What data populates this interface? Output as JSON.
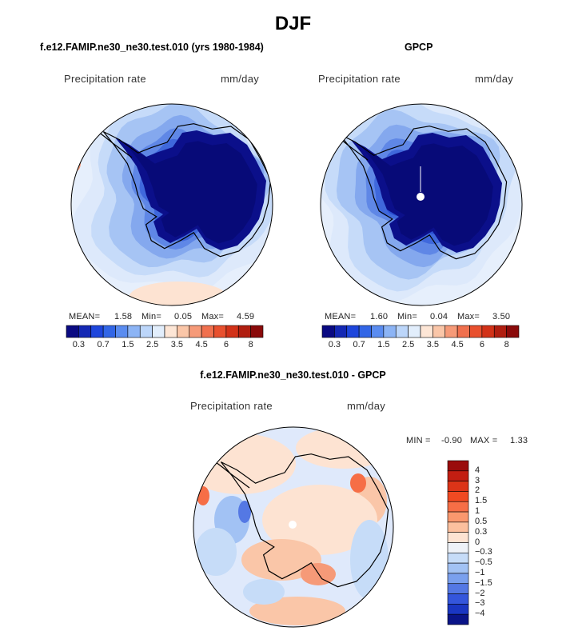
{
  "figure_title": "DJF",
  "panels": [
    {
      "title": "f.e12.FAMIP.ne30_ne30.test.010 (yrs 1980-1984)",
      "variable": "Precipitation rate",
      "units": "mm/day",
      "stats": {
        "mean_label": "MEAN=",
        "mean": "1.58",
        "min_label": "Min=",
        "min": "0.05",
        "max_label": "Max=",
        "max": "4.59"
      }
    },
    {
      "title": "GPCP",
      "variable": "Precipitation rate",
      "units": "mm/day",
      "stats": {
        "mean_label": "MEAN=",
        "mean": "1.60",
        "min_label": "Min=",
        "min": "0.04",
        "max_label": "Max=",
        "max": "3.50"
      }
    },
    {
      "title": "f.e12.FAMIP.ne30_ne30.test.010 - GPCP",
      "variable": "Precipitation rate",
      "units": "mm/day",
      "stats": {
        "min_label": "MIN =",
        "min": "-0.90",
        "max_label": "MAX =",
        "max": "1.33"
      }
    }
  ],
  "chart_data": [
    {
      "type": "heatmap",
      "projection": "south polar stereographic",
      "title": "f.e12.FAMIP.ne30_ne30.test.010 (yrs 1980-1984)",
      "variable": "Precipitation rate",
      "units": "mm/day",
      "mean": 1.58,
      "min": 0.05,
      "max": 4.59,
      "colorbar": {
        "levels": [
          "0.3",
          "0.7",
          "1.5",
          "2.5",
          "3.5",
          "4.5",
          "6",
          "8"
        ],
        "colors": [
          "#0a0a82",
          "#1428b4",
          "#1e46dc",
          "#3266e6",
          "#5a8cf0",
          "#8cb4f5",
          "#bcd6fa",
          "#e2eefc",
          "#fde6d6",
          "#fac6a8",
          "#f69a78",
          "#f0704e",
          "#e8502e",
          "#d23218",
          "#b01e10",
          "#8a0a0a"
        ]
      }
    },
    {
      "type": "heatmap",
      "projection": "south polar stereographic",
      "title": "GPCP",
      "variable": "Precipitation rate",
      "units": "mm/day",
      "mean": 1.6,
      "min": 0.04,
      "max": 3.5,
      "colorbar": {
        "levels": [
          "0.3",
          "0.7",
          "1.5",
          "2.5",
          "3.5",
          "4.5",
          "6",
          "8"
        ],
        "colors": [
          "#0a0a82",
          "#1428b4",
          "#1e46dc",
          "#3266e6",
          "#5a8cf0",
          "#8cb4f5",
          "#bcd6fa",
          "#e2eefc",
          "#fde6d6",
          "#fac6a8",
          "#f69a78",
          "#f0704e",
          "#e8502e",
          "#d23218",
          "#b01e10",
          "#8a0a0a"
        ]
      }
    },
    {
      "type": "heatmap",
      "projection": "south polar stereographic",
      "title": "f.e12.FAMIP.ne30_ne30.test.010 - GPCP",
      "variable": "Precipitation rate",
      "units": "mm/day",
      "min": -0.9,
      "max": 1.33,
      "colorbar": {
        "orientation": "vertical",
        "levels": [
          "4",
          "3",
          "2",
          "1.5",
          "1",
          "0.5",
          "0.3",
          "0",
          "−0.3",
          "−0.5",
          "−1",
          "−1.5",
          "−2",
          "−3",
          "−4"
        ],
        "colors": [
          "#9a0c0c",
          "#c21e12",
          "#dc3418",
          "#f04a22",
          "#f66e46",
          "#fa986e",
          "#fcc09e",
          "#fde3d2",
          "#eef2f8",
          "#c6dcf8",
          "#a2c2f4",
          "#7aa0ee",
          "#5478e4",
          "#3456dc",
          "#1a36c2",
          "#0a1488"
        ]
      }
    }
  ]
}
